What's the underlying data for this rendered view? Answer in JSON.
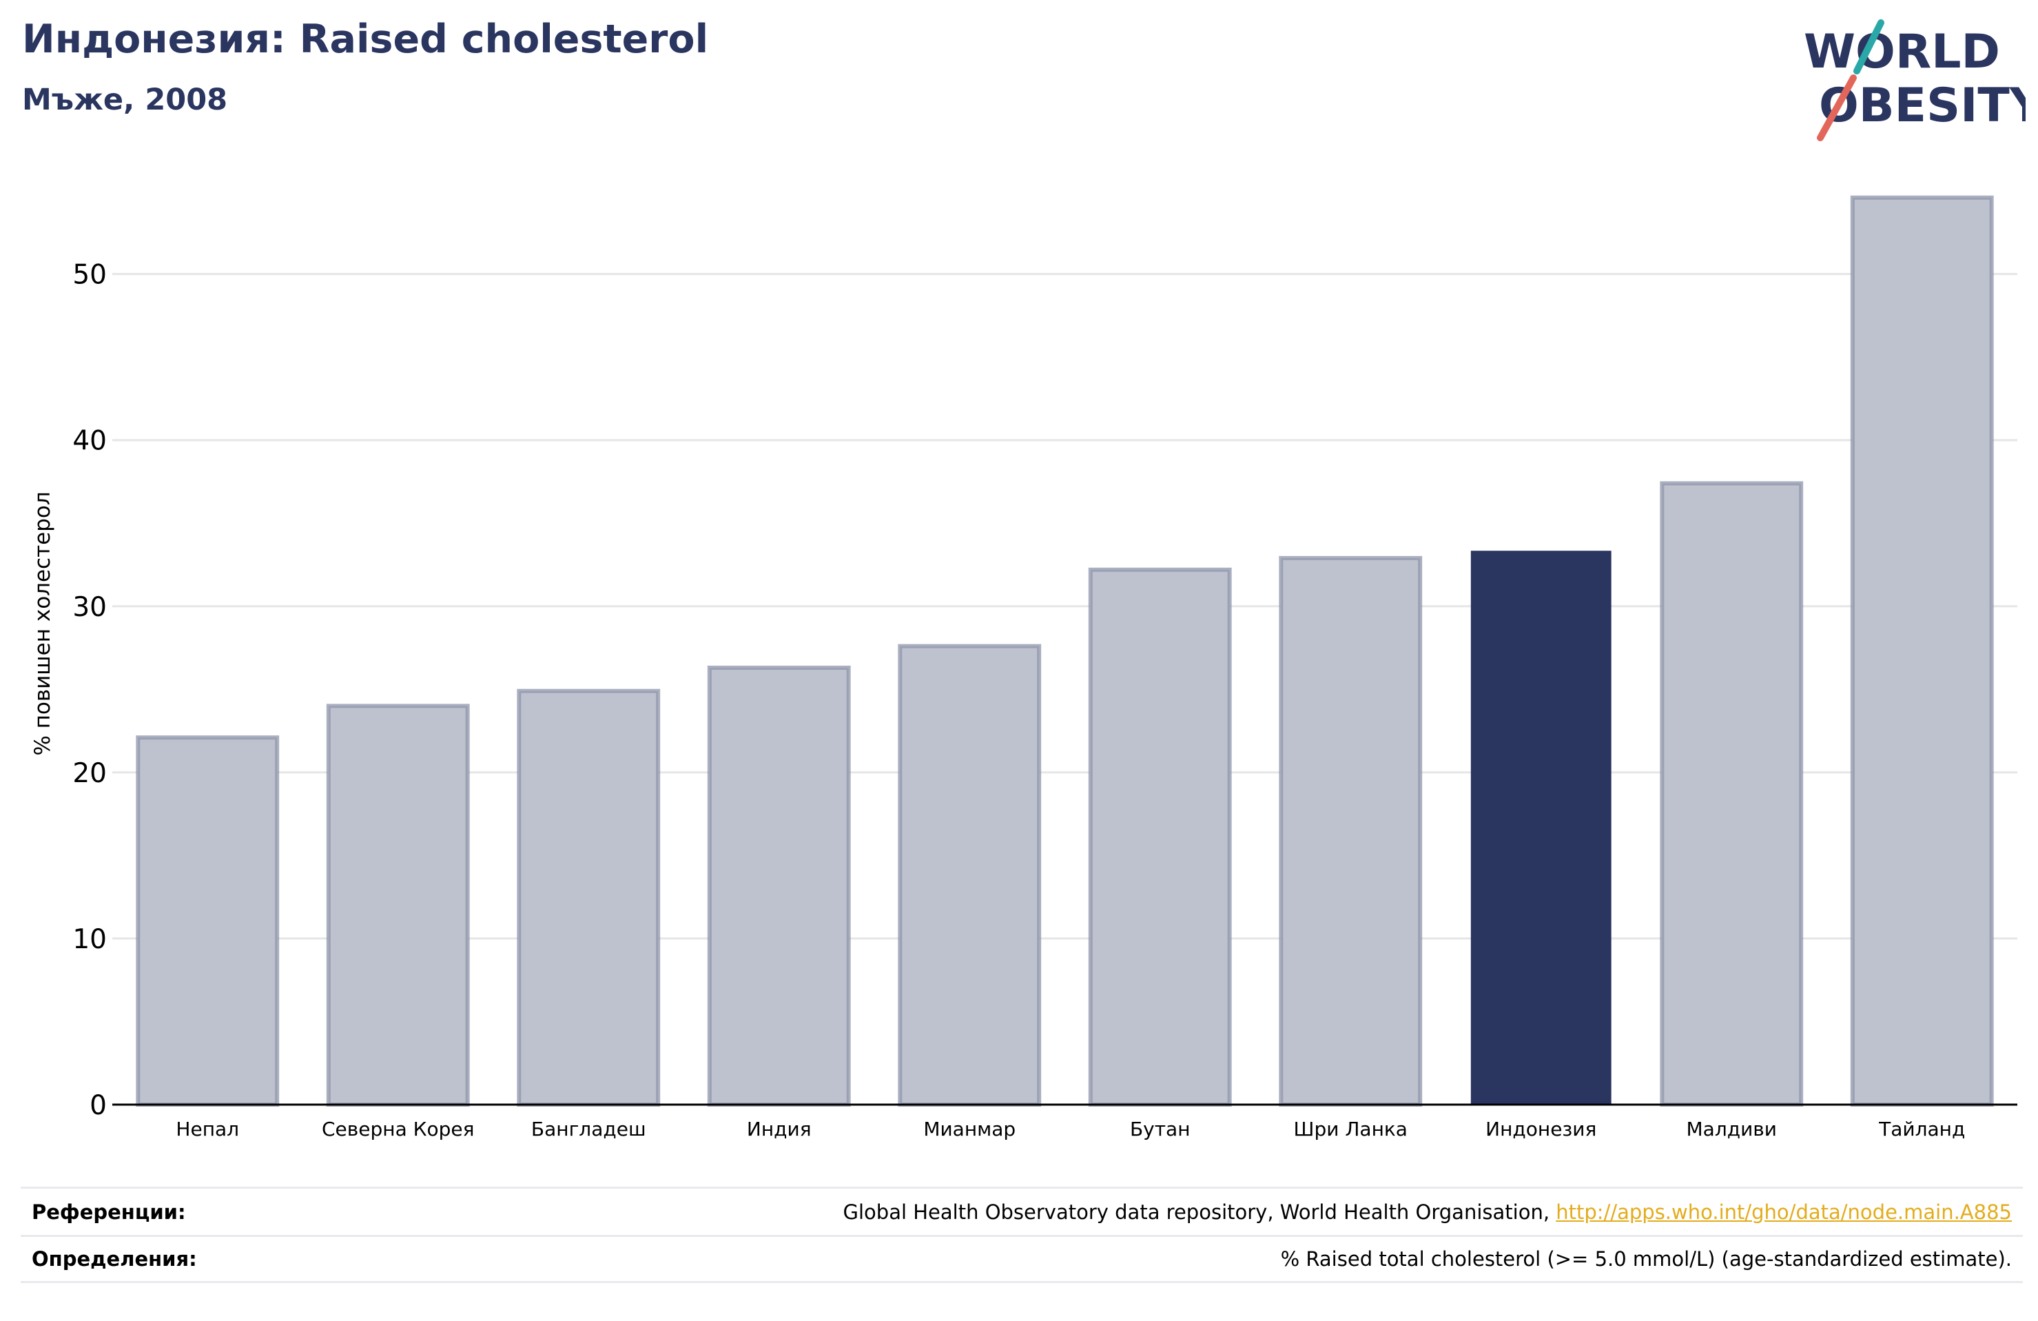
{
  "header": {
    "title": "Индонезия: Raised cholesterol",
    "subtitle": "Мъже, 2008"
  },
  "logo": {
    "line1": "WORLD",
    "line2": "OBESITY"
  },
  "colors": {
    "highlight": "#2a3560",
    "bar": "#bec2cf",
    "bar_edge": "#8f95ab",
    "grid": "#e6e6e6",
    "link": "#e3ac1c"
  },
  "chart_data": {
    "type": "bar",
    "categories": [
      "Непал",
      "Северна Корея",
      "Бангладеш",
      "Индия",
      "Мианмар",
      "Бутан",
      "Шри Ланка",
      "Индонезия",
      "Малдиви",
      "Тайланд"
    ],
    "values": [
      22.1,
      24.0,
      24.9,
      26.3,
      27.6,
      32.2,
      32.9,
      33.3,
      37.4,
      54.6
    ],
    "highlight": "Индонезия",
    "ylabel": "% повишен холестерол",
    "xlabel": "",
    "ylim": [
      0,
      56
    ],
    "yticks": [
      0,
      10,
      20,
      30,
      40,
      50
    ],
    "grid": true
  },
  "footer": {
    "references_label": "Референции:",
    "references_text": "Global Health Observatory data repository, World Health Organisation, ",
    "references_link": "http://apps.who.int/gho/data/node.main.A885",
    "definitions_label": "Определения:",
    "definitions_text": "% Raised total cholesterol (>= 5.0 mmol/L) (age-standardized estimate)."
  }
}
